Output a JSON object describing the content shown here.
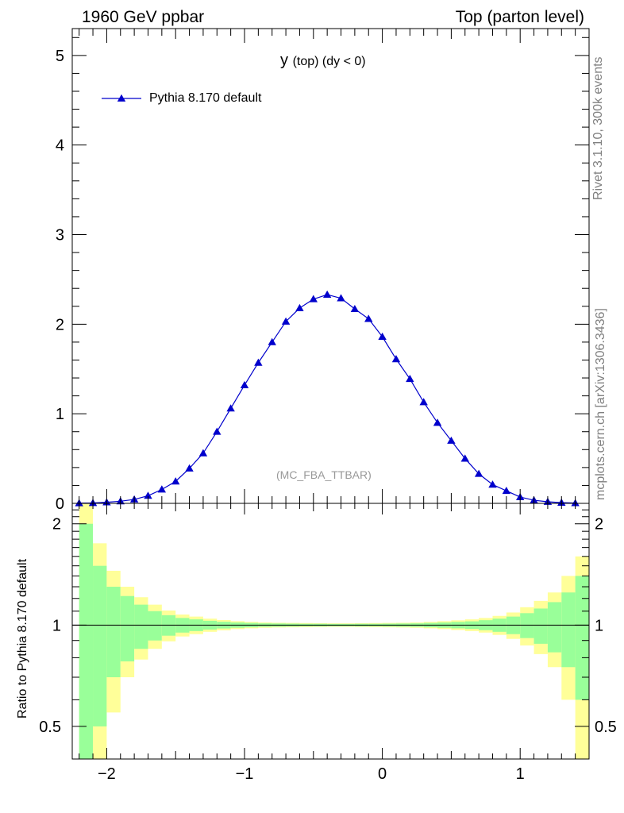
{
  "header": {
    "left": "1960 GeV ppbar",
    "right": "Top (parton level)"
  },
  "side_labels": {
    "rivet": "Rivet 3.1.10,  300k events",
    "mcplots": "mcplots.cern.ch [arXiv:1306.3436]"
  },
  "analysis_tag": "(MC_FBA_TTBAR)",
  "colors": {
    "series": "#0000cc",
    "band_outer": "#ffff99",
    "band_inner": "#99ff99",
    "side_text": "#808080"
  },
  "chart_data": [
    {
      "type": "line",
      "title": "y (top) (dy < 0)",
      "title_main": "y",
      "title_sub": "(top) (dy < 0)",
      "xlabel": "",
      "ylabel": "",
      "xlim": [
        -2.25,
        1.5
      ],
      "ylim": [
        0,
        5.3
      ],
      "yticks": [
        0,
        1,
        2,
        3,
        4,
        5
      ],
      "grid": false,
      "legend_position": "top-left",
      "marker": "triangle-up",
      "series": [
        {
          "name": "Pythia 8.170 default",
          "x": [
            -2.2,
            -2.1,
            -2.0,
            -1.9,
            -1.8,
            -1.7,
            -1.6,
            -1.5,
            -1.4,
            -1.3,
            -1.2,
            -1.1,
            -1.0,
            -0.9,
            -0.8,
            -0.7,
            -0.6,
            -0.5,
            -0.4,
            -0.3,
            -0.2,
            -0.1,
            0.0,
            0.1,
            0.2,
            0.3,
            0.4,
            0.5,
            0.6,
            0.7,
            0.8,
            0.9,
            1.0,
            1.1,
            1.2,
            1.3,
            1.4
          ],
          "values": [
            0.002,
            0.005,
            0.012,
            0.024,
            0.044,
            0.085,
            0.155,
            0.245,
            0.39,
            0.56,
            0.8,
            1.06,
            1.32,
            1.57,
            1.8,
            2.03,
            2.18,
            2.28,
            2.33,
            2.29,
            2.17,
            2.06,
            1.86,
            1.61,
            1.39,
            1.13,
            0.9,
            0.7,
            0.5,
            0.33,
            0.21,
            0.14,
            0.07,
            0.035,
            0.018,
            0.008,
            0.003
          ]
        }
      ]
    },
    {
      "type": "area",
      "ylabel": "Ratio to Pythia 8.170 default",
      "xlim": [
        -2.25,
        1.5
      ],
      "ylim": [
        0.4,
        2.3
      ],
      "yticks": [
        0.5,
        1,
        2
      ],
      "ytick_labels": [
        "0.5",
        "1",
        "2"
      ],
      "xticks": [
        -2,
        -1,
        0,
        1
      ],
      "xtick_labels": [
        "−2",
        "−1",
        "0",
        "1"
      ],
      "reference_line": 1,
      "bins": [
        -2.2,
        -2.1,
        -2.0,
        -1.9,
        -1.8,
        -1.7,
        -1.6,
        -1.5,
        -1.4,
        -1.3,
        -1.2,
        -1.1,
        -1.0,
        -0.9,
        -0.8,
        -0.7,
        -0.6,
        -0.5,
        -0.4,
        -0.3,
        -0.2,
        -0.1,
        0.0,
        0.1,
        0.2,
        0.3,
        0.4,
        0.5,
        0.6,
        0.7,
        0.8,
        0.9,
        1.0,
        1.1,
        1.2,
        1.3,
        1.4,
        1.5
      ],
      "band_inner_halfwidth": [
        1.0,
        0.5,
        0.3,
        0.22,
        0.15,
        0.1,
        0.07,
        0.05,
        0.04,
        0.03,
        0.023,
        0.018,
        0.015,
        0.012,
        0.011,
        0.01,
        0.009,
        0.009,
        0.008,
        0.008,
        0.009,
        0.009,
        0.01,
        0.011,
        0.012,
        0.015,
        0.018,
        0.022,
        0.026,
        0.034,
        0.045,
        0.06,
        0.085,
        0.12,
        0.17,
        0.25,
        0.4
      ],
      "band_outer_halfwidth": [
        1.5,
        0.75,
        0.45,
        0.3,
        0.21,
        0.15,
        0.105,
        0.075,
        0.06,
        0.045,
        0.035,
        0.027,
        0.022,
        0.018,
        0.016,
        0.015,
        0.014,
        0.013,
        0.012,
        0.012,
        0.013,
        0.014,
        0.015,
        0.016,
        0.018,
        0.022,
        0.027,
        0.033,
        0.04,
        0.05,
        0.065,
        0.09,
        0.13,
        0.18,
        0.25,
        0.4,
        0.6
      ]
    }
  ]
}
